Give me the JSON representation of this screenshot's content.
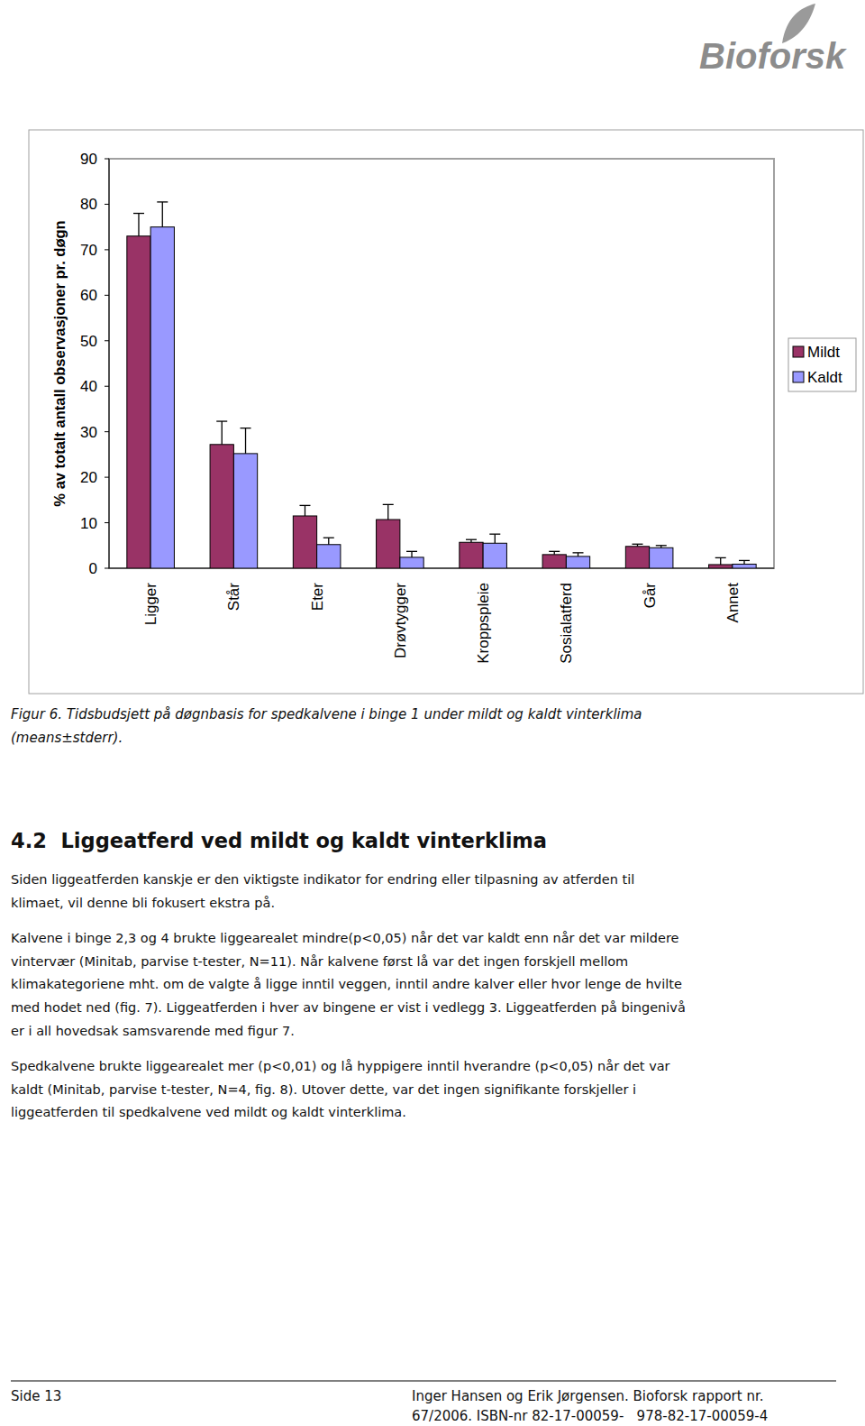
{
  "logo": "Bioforsk",
  "chart_data": {
    "type": "bar",
    "y_label": "% av totalt antall observasjoner pr. døgn",
    "categories": [
      "Ligger",
      "Står",
      "Eter",
      "Drøvtygger",
      "Kroppspleie",
      "Sosialatferd",
      "Går",
      "Annet"
    ],
    "series": [
      {
        "name": "Mildt",
        "color": "#993366",
        "values": [
          73,
          27.2,
          11.5,
          10.7,
          5.7,
          3,
          4.8,
          0.8
        ],
        "errors": [
          5,
          5.1,
          2.3,
          3.3,
          0.6,
          0.7,
          0.5,
          1.5
        ]
      },
      {
        "name": "Kaldt",
        "color": "#9999ff",
        "values": [
          75,
          25.2,
          5.2,
          2.4,
          5.5,
          2.6,
          4.5,
          0.9
        ],
        "errors": [
          5.5,
          5.6,
          1.5,
          1.3,
          2,
          0.8,
          0.5,
          0.8
        ]
      }
    ],
    "ylim": [
      0,
      90
    ],
    "yticks": [
      0,
      10,
      20,
      30,
      40,
      50,
      60,
      70,
      80,
      90
    ],
    "grid": false,
    "legend": "right"
  },
  "caption": [
    "Figur 6. Tidsbudsjett på døgnbasis for spedkalvene i binge 1 under mildt og kaldt vinterklima",
    "(means±stderr)."
  ],
  "heading": "4.2  Liggeatferd ved mildt og kaldt vinterklima",
  "paragraphs": [
    [
      "Siden liggeatferden kanskje er den viktigste indikator for endring eller tilpasning av atferden til",
      "klimaet, vil denne bli fokusert ekstra på."
    ],
    [
      "Kalvene i binge 2,3 og 4 brukte liggearealet mindre(p<0,05) når det var kaldt enn når det var mildere",
      "vintervær (Minitab, parvise t-tester, N=11). Når kalvene først lå var det ingen forskjell mellom",
      "klimakategoriene mht. om de valgte å ligge inntil veggen, inntil andre kalver eller hvor lenge de hvilte",
      "med hodet ned (fig. 7). Liggeatferden i hver av bingene er vist i vedlegg 3. Liggeatferden på bingenivå",
      "er i all hovedsak samsvarende med figur 7."
    ],
    [
      "Spedkalvene brukte liggearealet mer (p<0,01) og lå hyppigere inntil hverandre (p<0,05) når det var",
      "kaldt (Minitab, parvise t-tester, N=4, fig. 8). Utover dette, var det ingen signifikante forskjeller i",
      "liggeatferden til spedkalvene ved mildt og kaldt vinterklima."
    ]
  ],
  "footer": {
    "page": "Side 13",
    "lines": [
      "Inger Hansen og Erik Jørgensen. Bioforsk rapport nr.",
      "67/2006. ISBN-nr 82-17-00059-   978-82-17-00059-4"
    ]
  }
}
